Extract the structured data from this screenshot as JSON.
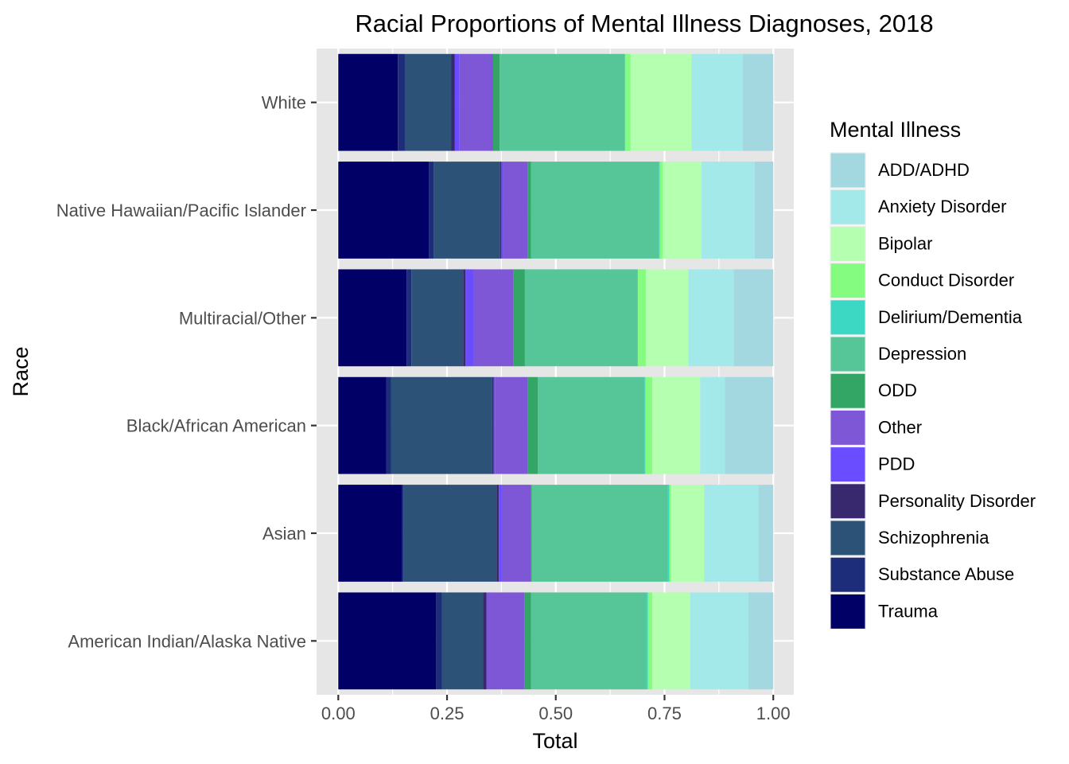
{
  "chart_data": {
    "type": "bar",
    "orientation": "horizontal",
    "stacked": true,
    "title": "Racial Proportions of Mental Illness Diagnoses, 2018",
    "xlabel": "Total",
    "ylabel": "Race",
    "xlim": [
      0,
      1
    ],
    "xticks": [
      "0.00",
      "0.25",
      "0.50",
      "0.75",
      "1.00"
    ],
    "grid": true,
    "legend_title": "Mental Illness",
    "legend_position": "right",
    "categories": [
      "American Indian/Alaska Native",
      "Asian",
      "Black/African American",
      "Multiracial/Other",
      "Native Hawaiian/Pacific Islander",
      "White"
    ],
    "series": [
      {
        "name": "Trauma",
        "color": "#000066",
        "values": [
          0.225,
          0.147,
          0.11,
          0.157,
          0.208,
          0.137
        ]
      },
      {
        "name": "Substance Abuse",
        "color": "#1E2D7A",
        "values": [
          0.013,
          0.003,
          0.011,
          0.011,
          0.011,
          0.016
        ]
      },
      {
        "name": "Schizophrenia",
        "color": "#2C5278",
        "values": [
          0.095,
          0.214,
          0.233,
          0.119,
          0.153,
          0.107
        ]
      },
      {
        "name": "Personality Disorder",
        "color": "#38296E",
        "values": [
          0.008,
          0.005,
          0.003,
          0.005,
          0.003,
          0.008
        ]
      },
      {
        "name": "PDD",
        "color": "#6A4DFF",
        "values": [
          0.0,
          0.007,
          0.003,
          0.02,
          0.004,
          0.01
        ]
      },
      {
        "name": "Other",
        "color": "#7D57D6",
        "values": [
          0.087,
          0.066,
          0.076,
          0.091,
          0.057,
          0.078
        ]
      },
      {
        "name": "ODD",
        "color": "#33A565",
        "values": [
          0.015,
          0.003,
          0.023,
          0.026,
          0.007,
          0.015
        ]
      },
      {
        "name": "Depression",
        "color": "#56C598",
        "values": [
          0.265,
          0.313,
          0.245,
          0.258,
          0.294,
          0.287
        ]
      },
      {
        "name": "Delirium/Dementia",
        "color": "#3CD8C4",
        "values": [
          0.004,
          0.003,
          0.002,
          0.002,
          0.002,
          0.002
        ]
      },
      {
        "name": "Conduct Disorder",
        "color": "#84FC80",
        "values": [
          0.01,
          0.004,
          0.016,
          0.018,
          0.007,
          0.012
        ]
      },
      {
        "name": "Bipolar",
        "color": "#B5FFB1",
        "values": [
          0.087,
          0.076,
          0.11,
          0.098,
          0.089,
          0.14
        ]
      },
      {
        "name": "Anxiety Disorder",
        "color": "#A3E9E9",
        "values": [
          0.134,
          0.125,
          0.057,
          0.104,
          0.122,
          0.118
        ]
      },
      {
        "name": "ADD/ADHD",
        "color": "#A4D8E1",
        "values": [
          0.057,
          0.034,
          0.111,
          0.091,
          0.043,
          0.07
        ]
      }
    ],
    "legend_order": [
      "ADD/ADHD",
      "Anxiety Disorder",
      "Bipolar",
      "Conduct Disorder",
      "Delirium/Dementia",
      "Depression",
      "ODD",
      "Other",
      "PDD",
      "Personality Disorder",
      "Schizophrenia",
      "Substance Abuse",
      "Trauma"
    ]
  }
}
